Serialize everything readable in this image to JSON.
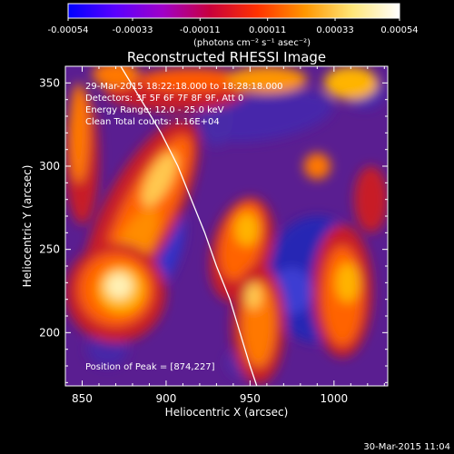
{
  "colorbar": {
    "tick_labels": [
      "-0.00054",
      "-0.00033",
      "-0.00011",
      "0.00011",
      "0.00033",
      "0.00054"
    ],
    "tick_values": [
      -0.00054,
      -0.00033,
      -0.00011,
      0.00011,
      0.00033,
      0.00054
    ],
    "unit_label": "(photons cm⁻² s⁻¹ asec⁻²)",
    "colors": [
      "#0000ff",
      "#5a00ff",
      "#a000c8",
      "#c8003c",
      "#ff3200",
      "#ff9600",
      "#ffe678",
      "#ffffff"
    ]
  },
  "chart_data": {
    "type": "heatmap",
    "title": "Reconstructed RHESSI Image",
    "xlabel": "Heliocentric X (arcsec)",
    "ylabel": "Heliocentric Y (arcsec)",
    "xlim": [
      840,
      1032
    ],
    "ylim": [
      168,
      360
    ],
    "x_ticks": [
      850,
      900,
      950,
      1000
    ],
    "y_ticks": [
      200,
      250,
      300,
      350
    ],
    "x_tick_labels": [
      "850",
      "900",
      "950",
      "1000"
    ],
    "y_tick_labels": [
      "200",
      "250",
      "300",
      "350"
    ],
    "value_range": [
      -0.00054,
      0.00054
    ],
    "annotations": [
      "29-Mar-2015 18:22:18.000 to 18:28:18.000",
      "Detectors: 3F 5F 6F 7F 8F 9F, Att 0",
      "Energy Range: 12.0 - 25.0 keV",
      "Clean     Total counts: 1.16E+04"
    ],
    "peak_label": "Position of Peak = [874,227]",
    "peak": [
      874,
      227
    ],
    "limb_curve": [
      [
        873,
        360
      ],
      [
        885,
        340
      ],
      [
        897,
        320
      ],
      [
        907,
        300
      ],
      [
        915,
        280
      ],
      [
        923,
        260
      ],
      [
        930,
        240
      ],
      [
        938,
        220
      ],
      [
        944,
        200
      ],
      [
        950,
        180
      ],
      [
        954,
        168
      ]
    ]
  },
  "footer": {
    "timestamp": "30-Mar-2015 11:04"
  }
}
